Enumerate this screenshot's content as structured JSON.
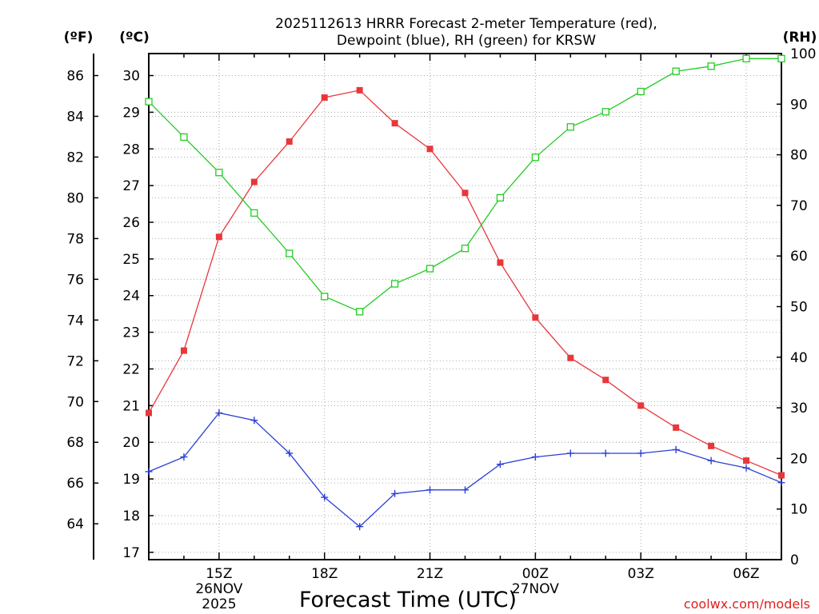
{
  "chart_data": {
    "type": "line",
    "title_lines": [
      "2025112613 HRRR Forecast 2-meter Temperature (red),",
      "Dewpoint (blue), RH (green) for KRSW"
    ],
    "xlabel": "Forecast Time (UTC)",
    "credit": "coolwx.com/models",
    "axis_titles": {
      "fahrenheit": "(ºF)",
      "celsius": "(ºC)",
      "rh": "(RH)"
    },
    "x_hours": [
      13,
      14,
      15,
      16,
      17,
      18,
      19,
      20,
      21,
      22,
      23,
      24,
      25,
      26,
      27,
      28,
      29,
      30,
      31
    ],
    "xlim": [
      13,
      31
    ],
    "x_ticks": [
      {
        "hour": 15,
        "label": "15Z",
        "date": "26NOV",
        "year": "2025"
      },
      {
        "hour": 18,
        "label": "18Z"
      },
      {
        "hour": 21,
        "label": "21Z"
      },
      {
        "hour": 24,
        "label": "00Z",
        "date": "27NOV"
      },
      {
        "hour": 27,
        "label": "03Z"
      },
      {
        "hour": 30,
        "label": "06Z"
      }
    ],
    "celsius_axis": {
      "min": 16.8,
      "max": 30.6,
      "ticks": [
        17,
        18,
        19,
        20,
        21,
        22,
        23,
        24,
        25,
        26,
        27,
        28,
        29,
        30
      ]
    },
    "fahrenheit_axis": {
      "ticks": [
        64,
        66,
        68,
        70,
        72,
        74,
        76,
        78,
        80,
        82,
        84,
        86
      ]
    },
    "rh_axis": {
      "min": 0,
      "max": 100,
      "ticks": [
        0,
        10,
        20,
        30,
        40,
        50,
        60,
        70,
        80,
        90,
        100
      ]
    },
    "colors": {
      "temperature": "#e8373b",
      "dewpoint": "#2b3fd6",
      "rh": "#22cc22",
      "grid": "#aaaaaa",
      "credit": "#e02020"
    },
    "series": [
      {
        "name": "Temperature",
        "unit": "C",
        "axis": "celsius",
        "marker": "filled-square",
        "values": [
          20.8,
          22.5,
          25.6,
          27.1,
          28.2,
          29.4,
          29.6,
          28.7,
          28.0,
          26.8,
          24.9,
          23.4,
          22.3,
          21.7,
          21.0,
          20.4,
          19.9,
          19.5,
          19.1
        ]
      },
      {
        "name": "Dewpoint",
        "unit": "C",
        "axis": "celsius",
        "marker": "plus",
        "values": [
          19.2,
          19.6,
          20.8,
          20.6,
          19.7,
          18.5,
          17.7,
          18.6,
          18.7,
          18.7,
          19.4,
          19.6,
          19.7,
          19.7,
          19.7,
          19.8,
          19.5,
          19.3,
          18.9
        ]
      },
      {
        "name": "Relative Humidity",
        "unit": "%",
        "axis": "rh",
        "marker": "open-square",
        "values": [
          90.5,
          83.5,
          76.5,
          68.5,
          60.5,
          52.0,
          49.0,
          54.5,
          57.5,
          61.5,
          71.5,
          79.5,
          85.5,
          88.5,
          92.5,
          96.5,
          97.5,
          99.0,
          99.0
        ]
      }
    ]
  }
}
